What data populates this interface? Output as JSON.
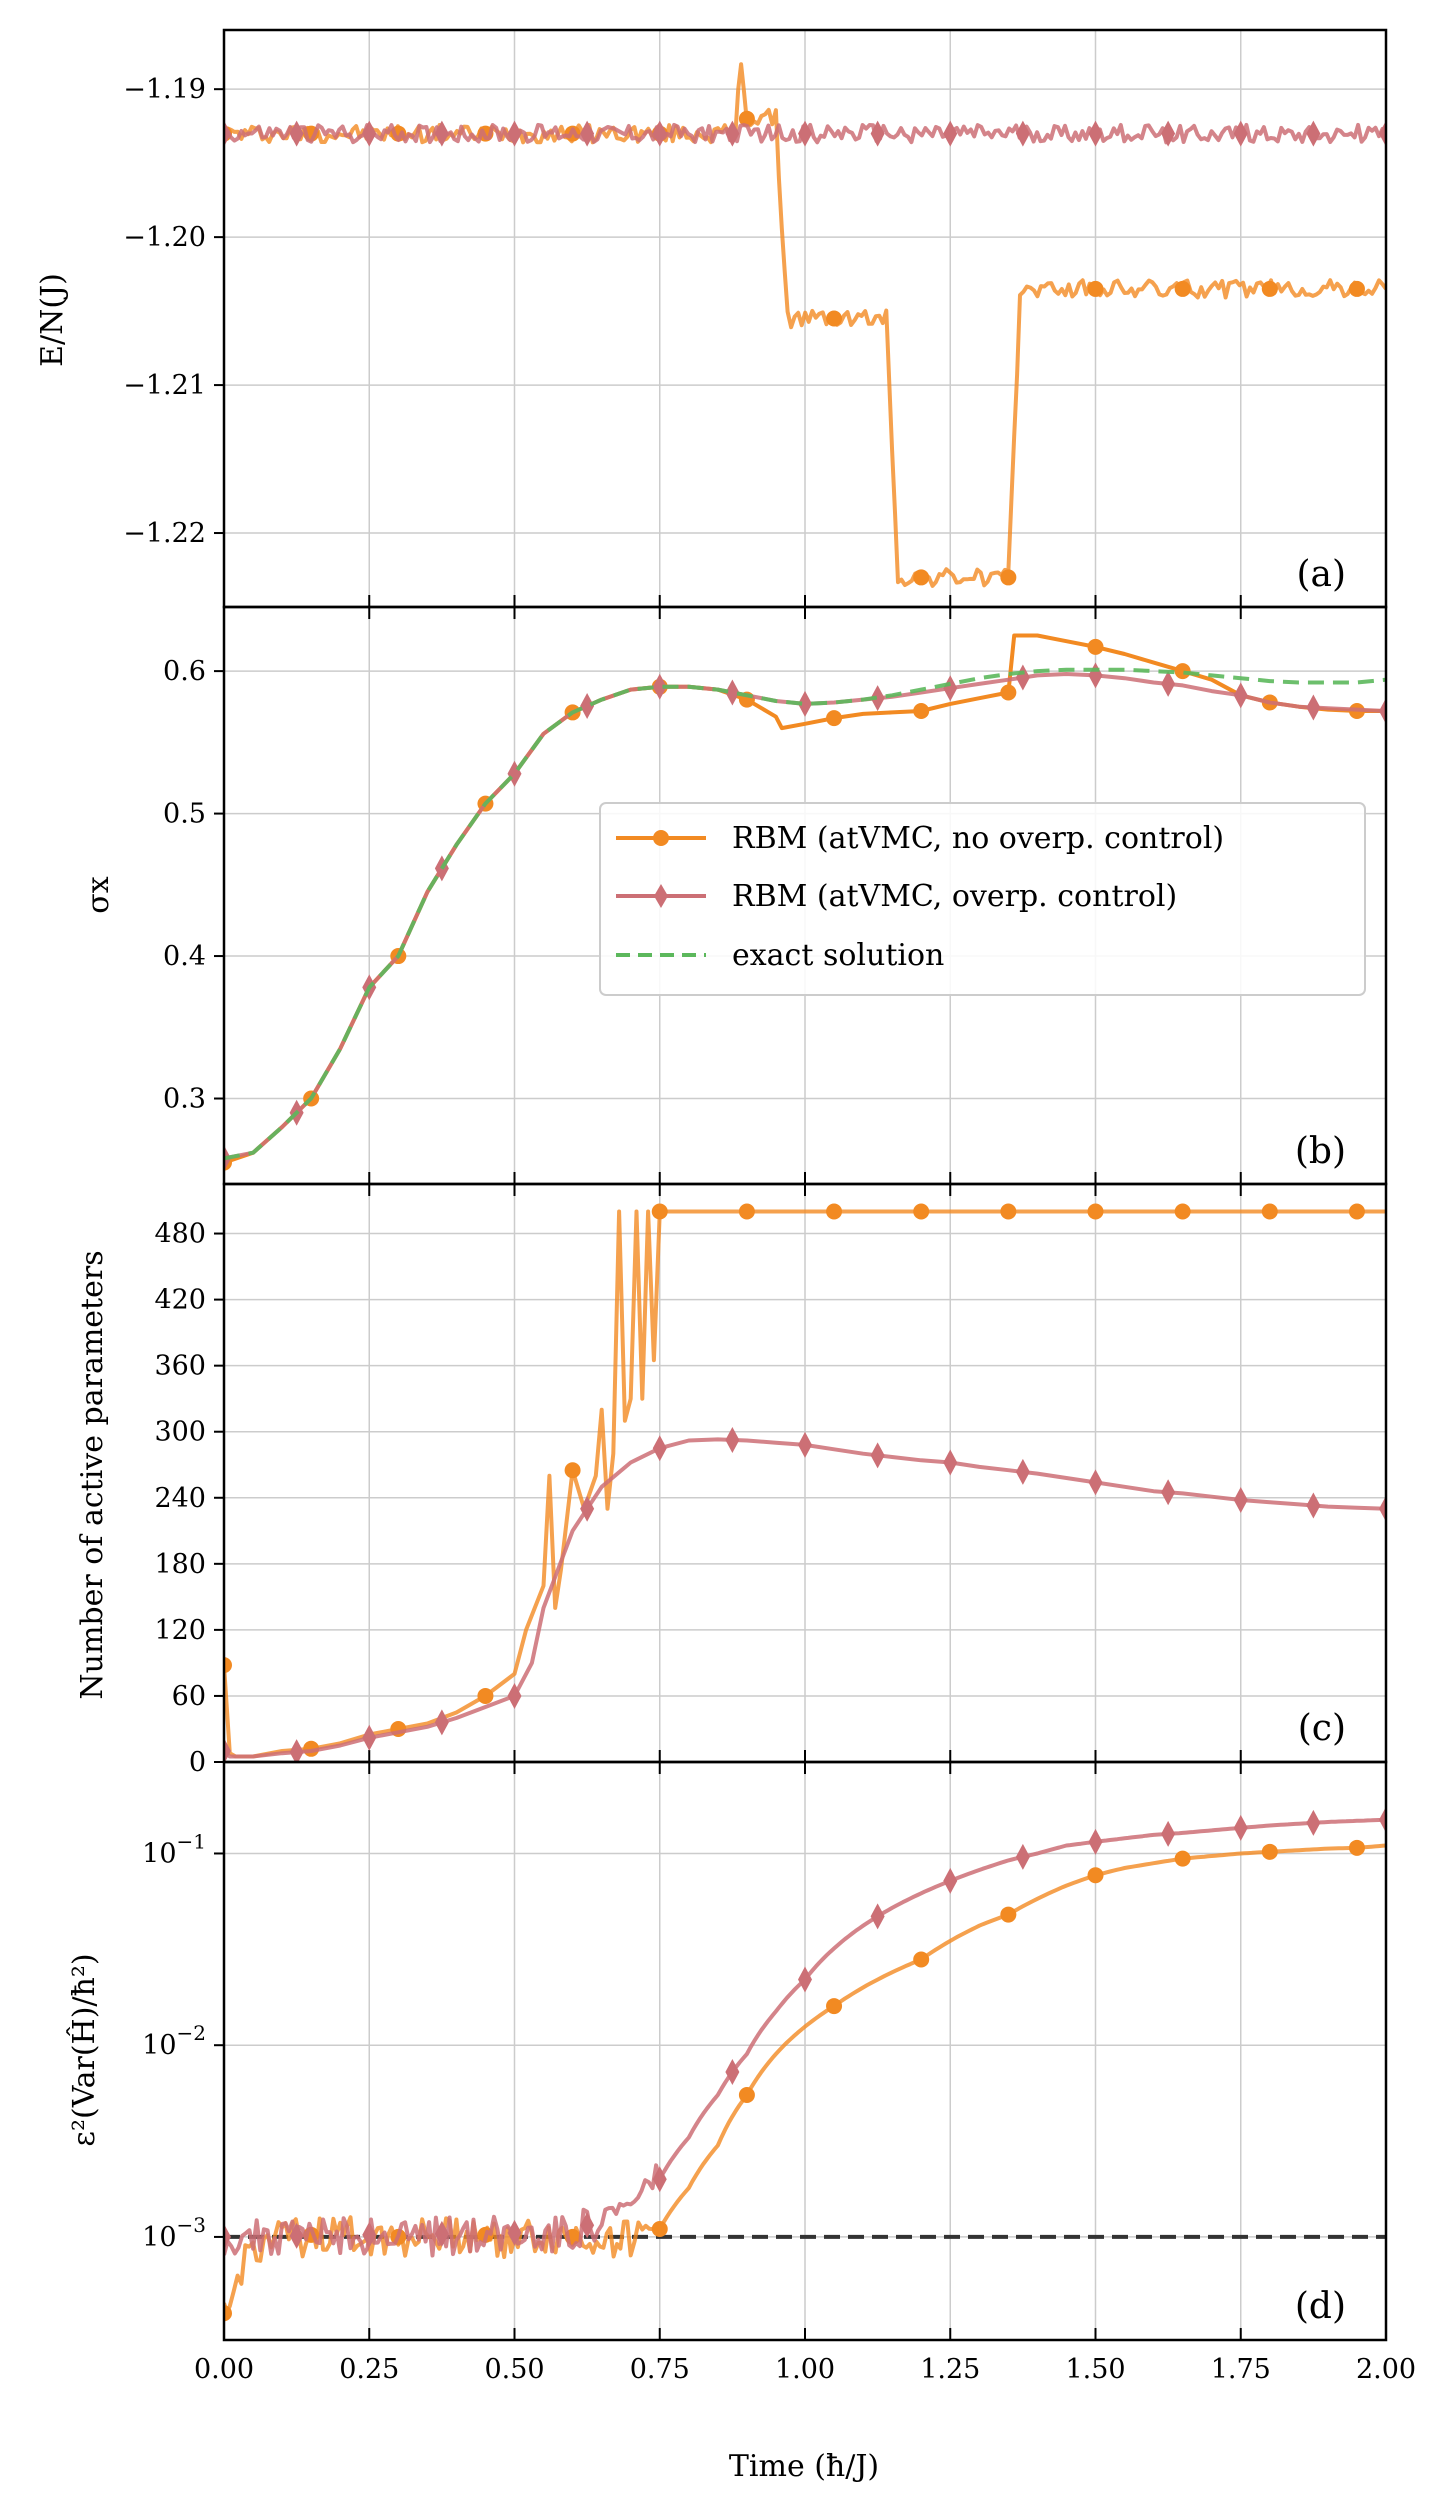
{
  "figure": {
    "xlabel": "Time (ħ/J)",
    "xticks": [
      "0.00",
      "0.25",
      "0.50",
      "0.75",
      "1.00",
      "1.25",
      "1.50",
      "1.75",
      "2.00"
    ],
    "xlim": [
      0,
      2.0
    ]
  },
  "colors": {
    "orange": "#f28a22",
    "rose": "#cc6f75",
    "green": "#5cb85c",
    "dark": "#333333",
    "grid": "#cccccc"
  },
  "legend": {
    "entries": [
      "RBM (atVMC, no overp. control)",
      "RBM (atVMC, overp. control)",
      "exact solution"
    ]
  },
  "chart_data": [
    {
      "type": "line",
      "panel": "(a)",
      "ylabel": "E/N(J)",
      "ylim": [
        -1.225,
        -1.186
      ],
      "yticks": [
        -1.19,
        -1.2,
        -1.21,
        -1.22
      ],
      "ytick_labels": [
        "−1.19",
        "−1.20",
        "−1.21",
        "−1.22"
      ],
      "series": [
        {
          "name": "RBM (atVMC, no overp. control)",
          "x": [
            0,
            0.88,
            0.89,
            0.9,
            0.95,
            0.96,
            0.97,
            1.14,
            1.15,
            1.16,
            1.35,
            1.36,
            1.37,
            1.4,
            2.0
          ],
          "y": [
            -1.193,
            -1.193,
            -1.188,
            -1.192,
            -1.192,
            -1.199,
            -1.2055,
            -1.2055,
            -1.214,
            -1.223,
            -1.223,
            -1.214,
            -1.2035,
            -1.2035,
            -1.2035
          ]
        },
        {
          "name": "RBM (atVMC, overp. control)",
          "x": [
            0,
            2.0
          ],
          "y": [
            -1.193,
            -1.193
          ]
        }
      ]
    },
    {
      "type": "line",
      "panel": "(b)",
      "ylabel": "σx",
      "ylim": [
        0.24,
        0.645
      ],
      "yticks": [
        0.3,
        0.4,
        0.5,
        0.6
      ],
      "ytick_labels": [
        "0.3",
        "0.4",
        "0.5",
        "0.6"
      ],
      "series": [
        {
          "name": "RBM (atVMC, no overp. control)",
          "x": [
            0,
            0.05,
            0.1,
            0.15,
            0.2,
            0.25,
            0.3,
            0.35,
            0.4,
            0.45,
            0.5,
            0.55,
            0.6,
            0.65,
            0.7,
            0.75,
            0.8,
            0.85,
            0.9,
            0.95,
            0.96,
            1.0,
            1.05,
            1.1,
            1.15,
            1.2,
            1.25,
            1.3,
            1.35,
            1.36,
            1.4,
            1.45,
            1.5,
            1.55,
            1.6,
            1.65,
            1.7,
            1.75,
            1.8,
            1.85,
            1.9,
            1.95,
            2.0
          ],
          "y": [
            0.255,
            0.262,
            0.28,
            0.3,
            0.335,
            0.378,
            0.4,
            0.445,
            0.478,
            0.507,
            0.528,
            0.556,
            0.571,
            0.58,
            0.587,
            0.589,
            0.589,
            0.587,
            0.58,
            0.568,
            0.56,
            0.563,
            0.567,
            0.57,
            0.571,
            0.572,
            0.577,
            0.581,
            0.585,
            0.625,
            0.625,
            0.621,
            0.617,
            0.612,
            0.606,
            0.6,
            0.594,
            0.583,
            0.578,
            0.575,
            0.573,
            0.572,
            0.572
          ]
        },
        {
          "name": "RBM (atVMC, overp. control)",
          "x": [
            0,
            0.05,
            0.1,
            0.15,
            0.2,
            0.25,
            0.3,
            0.35,
            0.4,
            0.45,
            0.5,
            0.55,
            0.6,
            0.65,
            0.7,
            0.75,
            0.8,
            0.85,
            0.9,
            0.95,
            1.0,
            1.05,
            1.1,
            1.15,
            1.2,
            1.25,
            1.3,
            1.35,
            1.4,
            1.45,
            1.5,
            1.55,
            1.6,
            1.65,
            1.7,
            1.75,
            1.8,
            1.85,
            1.9,
            1.95,
            2.0
          ],
          "y": [
            0.258,
            0.262,
            0.28,
            0.3,
            0.335,
            0.378,
            0.4,
            0.445,
            0.478,
            0.507,
            0.528,
            0.556,
            0.571,
            0.58,
            0.587,
            0.589,
            0.589,
            0.587,
            0.583,
            0.579,
            0.577,
            0.578,
            0.58,
            0.582,
            0.585,
            0.588,
            0.591,
            0.594,
            0.597,
            0.598,
            0.597,
            0.595,
            0.592,
            0.59,
            0.586,
            0.583,
            0.578,
            0.575,
            0.574,
            0.573,
            0.572
          ]
        },
        {
          "name": "exact solution",
          "x": [
            0,
            0.05,
            0.1,
            0.15,
            0.2,
            0.25,
            0.3,
            0.35,
            0.4,
            0.45,
            0.5,
            0.55,
            0.6,
            0.65,
            0.7,
            0.75,
            0.8,
            0.85,
            0.9,
            0.95,
            1.0,
            1.05,
            1.1,
            1.15,
            1.2,
            1.25,
            1.3,
            1.35,
            1.4,
            1.45,
            1.5,
            1.55,
            1.6,
            1.65,
            1.7,
            1.75,
            1.8,
            1.85,
            1.9,
            1.95,
            2.0
          ],
          "y": [
            0.258,
            0.262,
            0.28,
            0.3,
            0.335,
            0.378,
            0.4,
            0.445,
            0.478,
            0.507,
            0.528,
            0.556,
            0.571,
            0.58,
            0.587,
            0.589,
            0.589,
            0.587,
            0.583,
            0.579,
            0.577,
            0.578,
            0.58,
            0.583,
            0.587,
            0.591,
            0.595,
            0.598,
            0.6,
            0.601,
            0.601,
            0.601,
            0.6,
            0.599,
            0.597,
            0.595,
            0.593,
            0.592,
            0.592,
            0.592,
            0.594
          ]
        }
      ]
    },
    {
      "type": "line",
      "panel": "(c)",
      "ylabel": "Number of active parameters",
      "ylim": [
        0,
        525
      ],
      "yticks": [
        0,
        60,
        120,
        180,
        240,
        300,
        360,
        420,
        480
      ],
      "ytick_labels": [
        "0",
        "60",
        "120",
        "180",
        "240",
        "300",
        "360",
        "420",
        "480"
      ],
      "series": [
        {
          "name": "RBM (atVMC, no overp. control)",
          "x": [
            0,
            0.01,
            0.02,
            0.05,
            0.1,
            0.15,
            0.2,
            0.25,
            0.3,
            0.35,
            0.4,
            0.45,
            0.5,
            0.52,
            0.55,
            0.56,
            0.57,
            0.58,
            0.6,
            0.62,
            0.64,
            0.65,
            0.66,
            0.67,
            0.68,
            0.69,
            0.7,
            0.71,
            0.72,
            0.73,
            0.74,
            0.75,
            0.8,
            1.0,
            1.25,
            1.5,
            1.75,
            2.0
          ],
          "y": [
            88,
            8,
            5,
            5,
            10,
            12,
            17,
            25,
            30,
            35,
            45,
            60,
            80,
            120,
            160,
            260,
            140,
            175,
            265,
            230,
            260,
            320,
            230,
            280,
            500,
            310,
            330,
            500,
            330,
            500,
            365,
            500,
            500,
            500,
            500,
            500,
            500,
            500
          ]
        },
        {
          "name": "RBM (atVMC, overp. control)",
          "x": [
            0,
            0.01,
            0.05,
            0.1,
            0.15,
            0.2,
            0.25,
            0.3,
            0.35,
            0.4,
            0.45,
            0.5,
            0.53,
            0.55,
            0.6,
            0.65,
            0.7,
            0.75,
            0.8,
            0.85,
            0.9,
            0.95,
            1.0,
            1.05,
            1.1,
            1.15,
            1.2,
            1.25,
            1.3,
            1.35,
            1.4,
            1.45,
            1.5,
            1.55,
            1.6,
            1.65,
            1.7,
            1.75,
            1.8,
            1.85,
            1.9,
            1.95,
            2.0
          ],
          "y": [
            10,
            5,
            5,
            8,
            10,
            15,
            22,
            27,
            32,
            40,
            50,
            60,
            90,
            140,
            210,
            250,
            272,
            285,
            292,
            293,
            292,
            290,
            288,
            284,
            280,
            277,
            274,
            272,
            268,
            265,
            262,
            258,
            254,
            250,
            246,
            244,
            241,
            238,
            236,
            234,
            232,
            231,
            230
          ]
        }
      ]
    },
    {
      "type": "line",
      "panel": "(d)",
      "ylabel": "ε²(Var(Ĥ)/ħ²)",
      "yscale": "log",
      "ylim": [
        0.00029,
        0.3
      ],
      "yticks": [
        0.001,
        0.01,
        0.1
      ],
      "ytick_labels": [
        "10−3",
        "10−2",
        "10−1"
      ],
      "threshold": 0.001,
      "series": [
        {
          "name": "RBM (atVMC, no overp. control)",
          "x": [
            0,
            0.01,
            0.03,
            0.05,
            0.1,
            0.2,
            0.3,
            0.4,
            0.5,
            0.6,
            0.7,
            0.72,
            0.75,
            0.8,
            0.85,
            0.9,
            0.95,
            1.0,
            1.05,
            1.1,
            1.15,
            1.2,
            1.25,
            1.3,
            1.35,
            1.4,
            1.45,
            1.5,
            1.55,
            1.6,
            1.65,
            1.7,
            1.75,
            1.8,
            1.85,
            1.9,
            1.95,
            2.0
          ],
          "y": [
            0.0004,
            0.0004,
            0.0007,
            0.0009,
            0.001,
            0.00105,
            0.001,
            0.00105,
            0.001,
            0.001,
            0.001,
            0.001,
            0.0011,
            0.0018,
            0.003,
            0.0055,
            0.009,
            0.0125,
            0.016,
            0.02,
            0.024,
            0.028,
            0.035,
            0.042,
            0.048,
            0.058,
            0.068,
            0.077,
            0.084,
            0.089,
            0.094,
            0.097,
            0.1,
            0.102,
            0.104,
            0.106,
            0.107,
            0.11
          ]
        },
        {
          "name": "RBM (atVMC, overp. control)",
          "x": [
            0,
            0.05,
            0.1,
            0.2,
            0.3,
            0.4,
            0.5,
            0.6,
            0.65,
            0.7,
            0.75,
            0.8,
            0.85,
            0.9,
            0.95,
            1.0,
            1.05,
            1.1,
            1.15,
            1.2,
            1.25,
            1.3,
            1.35,
            1.4,
            1.45,
            1.5,
            1.55,
            1.6,
            1.65,
            1.7,
            1.75,
            1.8,
            1.85,
            1.9,
            1.95,
            2.0
          ],
          "y": [
            0.001,
            0.001,
            0.001,
            0.00105,
            0.001,
            0.00105,
            0.00105,
            0.0011,
            0.0012,
            0.0015,
            0.002,
            0.0033,
            0.0055,
            0.009,
            0.015,
            0.022,
            0.032,
            0.042,
            0.052,
            0.062,
            0.072,
            0.082,
            0.092,
            0.1,
            0.11,
            0.115,
            0.12,
            0.125,
            0.128,
            0.132,
            0.136,
            0.14,
            0.143,
            0.146,
            0.148,
            0.15
          ]
        }
      ]
    }
  ]
}
